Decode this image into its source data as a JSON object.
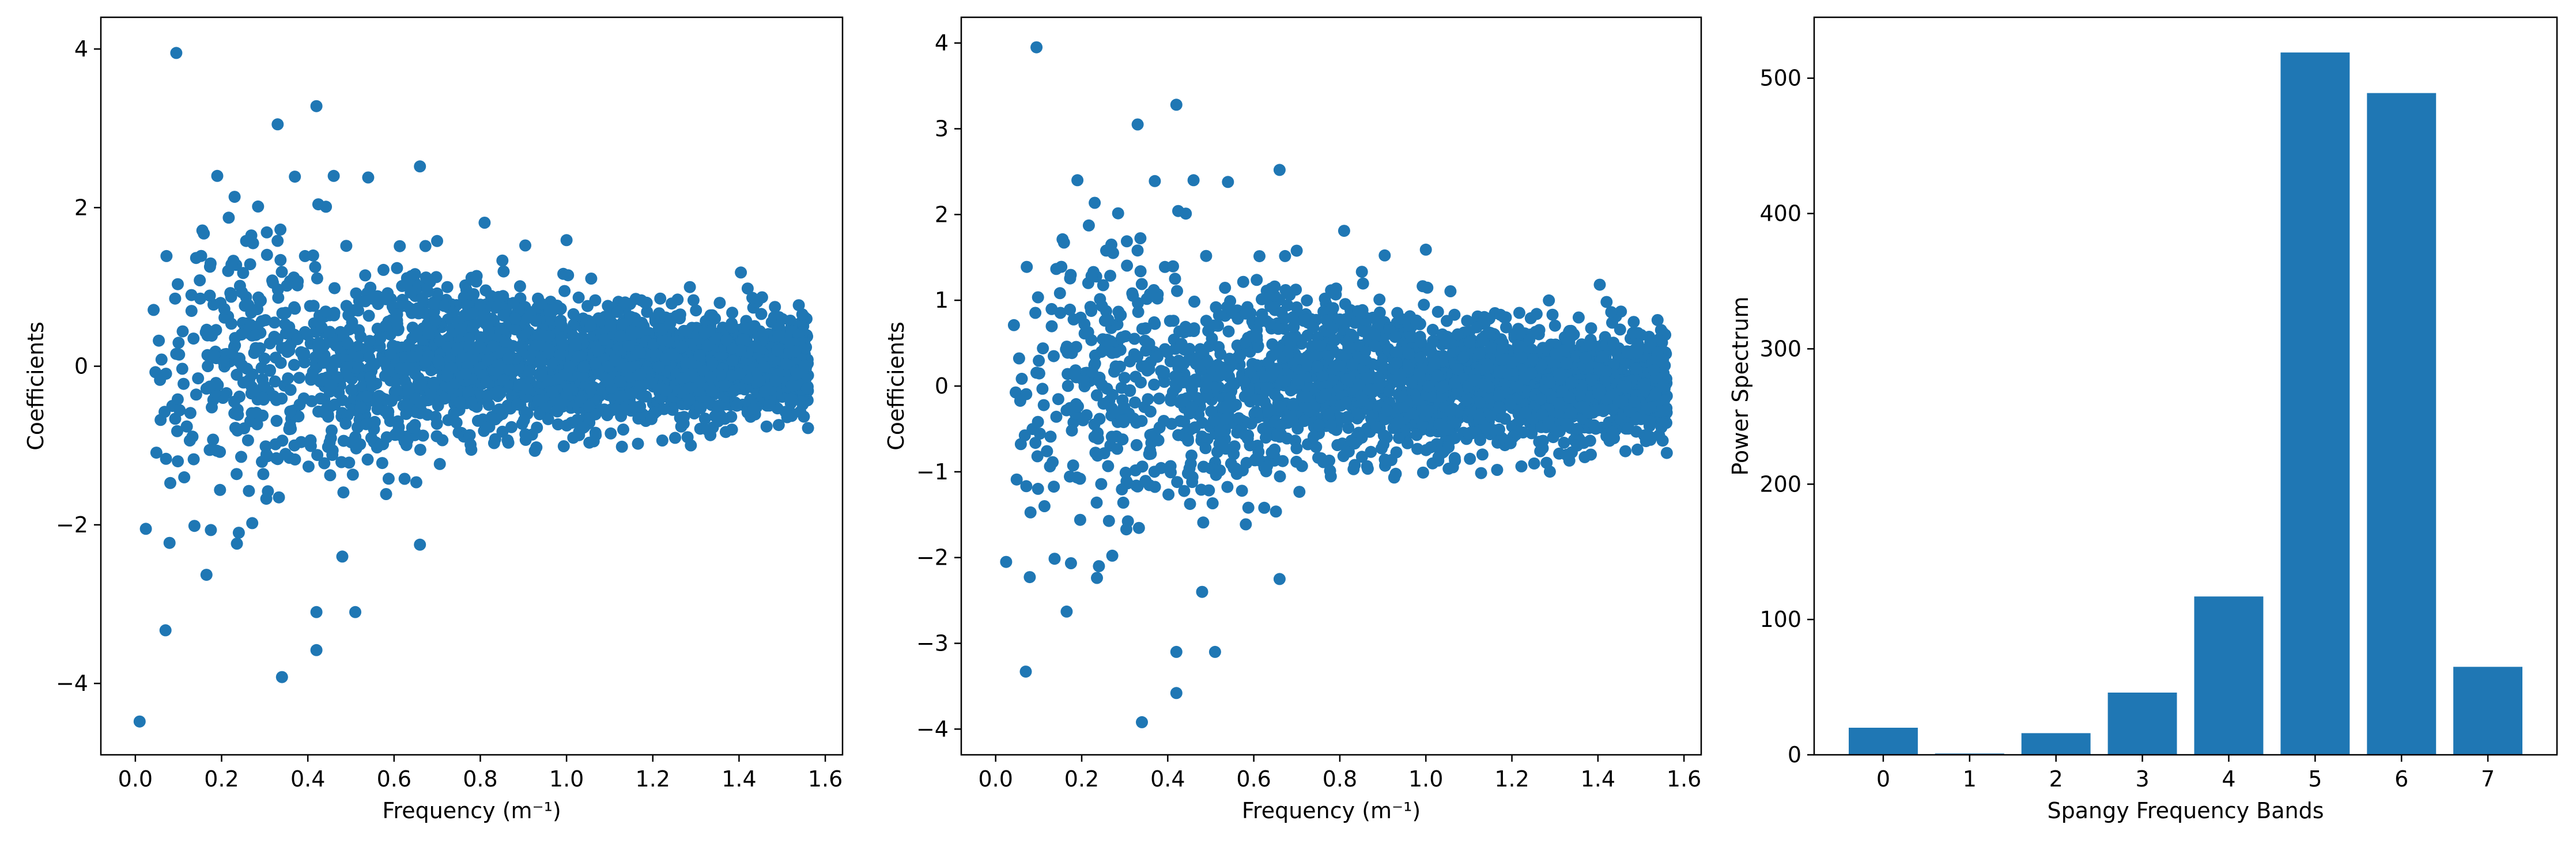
{
  "colors": {
    "marker": "#1f77b4",
    "axes": "#000000",
    "background": "#ffffff"
  },
  "chart_data": [
    {
      "type": "scatter",
      "xlabel": "Frequency (m⁻¹)",
      "ylabel": "Coefficients",
      "xlim": [
        -0.08,
        1.64
      ],
      "ylim": [
        -4.9,
        4.4
      ],
      "xticks": [
        0.0,
        0.2,
        0.4,
        0.6,
        0.8,
        1.0,
        1.2,
        1.4,
        1.6
      ],
      "xtick_labels": [
        "0.0",
        "0.2",
        "0.4",
        "0.6",
        "0.8",
        "1.0",
        "1.2",
        "1.4",
        "1.6"
      ],
      "yticks": [
        -4,
        -2,
        0,
        2,
        4
      ],
      "ytick_labels": [
        "−4",
        "−2",
        "0",
        "2",
        "4"
      ],
      "grid": false,
      "x_range_of_points": [
        0.0,
        1.56
      ],
      "notable_points": [
        {
          "x": 0.01,
          "y": -4.48
        },
        {
          "x": 0.095,
          "y": 3.95
        },
        {
          "x": 0.42,
          "y": 3.28
        },
        {
          "x": 0.33,
          "y": 3.05
        },
        {
          "x": 0.34,
          "y": -3.92
        },
        {
          "x": 0.42,
          "y": -3.58
        },
        {
          "x": 0.07,
          "y": -3.33
        },
        {
          "x": 0.42,
          "y": -3.1
        },
        {
          "x": 0.51,
          "y": -3.1
        },
        {
          "x": 0.165,
          "y": -2.63
        },
        {
          "x": 0.66,
          "y": 2.52
        },
        {
          "x": 0.19,
          "y": 2.4
        },
        {
          "x": 0.46,
          "y": 2.4
        },
        {
          "x": 0.54,
          "y": 2.38
        },
        {
          "x": 0.37,
          "y": 2.39
        },
        {
          "x": 0.81,
          "y": 1.81
        },
        {
          "x": 1.0,
          "y": 1.59
        },
        {
          "x": 0.48,
          "y": -2.4
        },
        {
          "x": 0.24,
          "y": -2.1
        },
        {
          "x": 0.66,
          "y": -2.25
        },
        {
          "x": 1.42,
          "y": 0.98
        },
        {
          "x": 1.56,
          "y": -0.78
        }
      ]
    },
    {
      "type": "scatter",
      "xlabel": "Frequency (m⁻¹)",
      "ylabel": "Coefficients",
      "xlim": [
        -0.08,
        1.64
      ],
      "ylim": [
        -4.3,
        4.3
      ],
      "xticks": [
        0.0,
        0.2,
        0.4,
        0.6,
        0.8,
        1.0,
        1.2,
        1.4,
        1.6
      ],
      "xtick_labels": [
        "0.0",
        "0.2",
        "0.4",
        "0.6",
        "0.8",
        "1.0",
        "1.2",
        "1.4",
        "1.6"
      ],
      "yticks": [
        -4,
        -3,
        -2,
        -1,
        0,
        1,
        2,
        3,
        4
      ],
      "ytick_labels": [
        "−4",
        "−3",
        "−2",
        "−1",
        "0",
        "1",
        "2",
        "3",
        "4"
      ],
      "grid": false,
      "x_range_of_points": [
        0.0,
        1.56
      ],
      "notable_points": [
        {
          "x": 0.095,
          "y": 3.95
        },
        {
          "x": 0.42,
          "y": 3.28
        },
        {
          "x": 0.33,
          "y": 3.05
        },
        {
          "x": 0.34,
          "y": -3.92
        },
        {
          "x": 0.42,
          "y": -3.58
        },
        {
          "x": 0.07,
          "y": -3.33
        },
        {
          "x": 0.42,
          "y": -3.1
        },
        {
          "x": 0.51,
          "y": -3.1
        },
        {
          "x": 0.165,
          "y": -2.63
        },
        {
          "x": 0.66,
          "y": 2.52
        },
        {
          "x": 0.19,
          "y": 2.4
        },
        {
          "x": 0.46,
          "y": 2.4
        },
        {
          "x": 0.54,
          "y": 2.38
        },
        {
          "x": 0.37,
          "y": 2.39
        },
        {
          "x": 0.81,
          "y": 1.81
        },
        {
          "x": 1.0,
          "y": 1.59
        },
        {
          "x": 0.48,
          "y": -2.4
        },
        {
          "x": 0.24,
          "y": -2.1
        },
        {
          "x": 0.66,
          "y": -2.25
        },
        {
          "x": 1.42,
          "y": 0.98
        },
        {
          "x": 1.56,
          "y": -0.78
        }
      ]
    },
    {
      "type": "bar",
      "xlabel": "Spangy Frequency Bands",
      "ylabel": "Power Spectrum",
      "categories": [
        "0",
        "1",
        "2",
        "3",
        "4",
        "5",
        "6",
        "7"
      ],
      "values": [
        20,
        1,
        16,
        46,
        117,
        519,
        489,
        65
      ],
      "xlim": [
        -0.8,
        7.8
      ],
      "ylim": [
        0,
        545
      ],
      "yticks": [
        0,
        100,
        200,
        300,
        400,
        500
      ],
      "ytick_labels": [
        "0",
        "100",
        "200",
        "300",
        "400",
        "500"
      ],
      "grid": false
    }
  ]
}
